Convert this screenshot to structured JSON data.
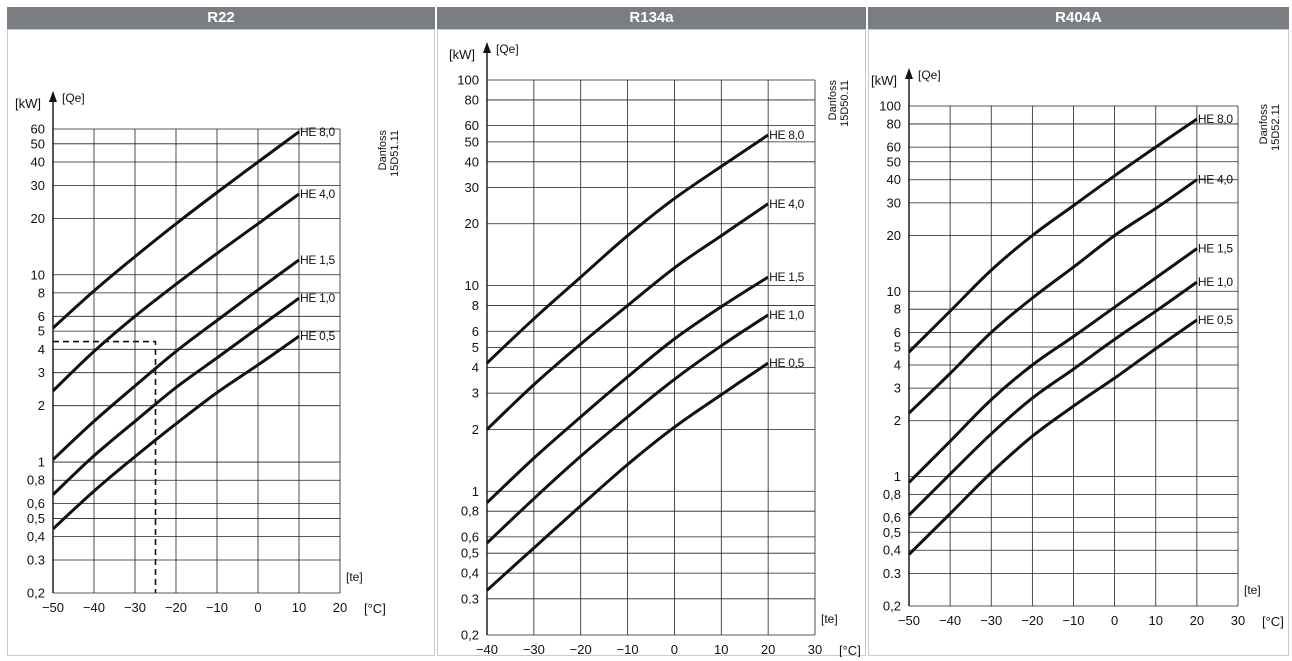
{
  "panels": [
    {
      "header": "R22"
    },
    {
      "header": "R134a"
    },
    {
      "header": "R404A"
    }
  ],
  "chart_data": [
    {
      "type": "line",
      "refrigerant": "R22",
      "y_unit": "[kW]",
      "y_quantity": "[Qe]",
      "x_quantity": "[te]",
      "x_unit": "[°C]",
      "code": "Danfoss\n15D51.11",
      "y_scale": "log",
      "ylim": [
        0.2,
        60
      ],
      "xlim": [
        -50,
        20
      ],
      "grid": true,
      "x_ticks": [
        -50,
        -40,
        -30,
        -20,
        -10,
        0,
        10,
        20
      ],
      "x_tick_labels": [
        "−50",
        "−40",
        "−30",
        "−20",
        "−10",
        "0",
        "10",
        "20"
      ],
      "y_ticks": [
        0.2,
        0.3,
        0.4,
        0.5,
        0.6,
        0.8,
        1,
        2,
        3,
        4,
        5,
        6,
        8,
        10,
        20,
        30,
        40,
        50,
        60
      ],
      "y_tick_labels": [
        "0,2",
        "0.3",
        "0,4",
        "0,5",
        "0,6",
        "0,8",
        "1",
        "2",
        "3",
        "4",
        "5",
        "6",
        "8",
        "10",
        "20",
        "30",
        "40",
        "50",
        "60"
      ],
      "series": [
        {
          "name": "HE 8,0",
          "x": [
            -50,
            -40,
            -30,
            -20,
            -10,
            0,
            10
          ],
          "y": [
            5.2,
            8.2,
            12.5,
            18.7,
            27.5,
            40,
            58
          ]
        },
        {
          "name": "HE 4,0",
          "x": [
            -50,
            -40,
            -30,
            -20,
            -10,
            0,
            10
          ],
          "y": [
            2.4,
            3.9,
            6,
            8.9,
            13,
            18.7,
            27
          ]
        },
        {
          "name": "HE 1,5",
          "x": [
            -50,
            -40,
            -30,
            -20,
            -10,
            0,
            10
          ],
          "y": [
            1.03,
            1.65,
            2.55,
            3.9,
            5.7,
            8.3,
            12
          ]
        },
        {
          "name": "HE 1,0",
          "x": [
            -50,
            -40,
            -30,
            -20,
            -10,
            0,
            10
          ],
          "y": [
            0.67,
            1.08,
            1.65,
            2.5,
            3.6,
            5.2,
            7.5
          ]
        },
        {
          "name": "HE 0,5",
          "x": [
            -50,
            -40,
            -30,
            -20,
            -10,
            0,
            10
          ],
          "y": [
            0.44,
            0.7,
            1.07,
            1.6,
            2.35,
            3.3,
            4.7
          ]
        }
      ],
      "reference_line": {
        "x": -25,
        "y": 4.4
      }
    },
    {
      "type": "line",
      "refrigerant": "R134a",
      "y_unit": "[kW]",
      "y_quantity": "[Qe]",
      "x_quantity": "[te]",
      "x_unit": "[°C]",
      "code": "Danfoss\n15D50.11",
      "y_scale": "log",
      "ylim": [
        0.2,
        100
      ],
      "xlim": [
        -40,
        30
      ],
      "grid": true,
      "x_ticks": [
        -40,
        -30,
        -20,
        -10,
        0,
        10,
        20,
        30
      ],
      "x_tick_labels": [
        "−40",
        "−30",
        "−20",
        "−10",
        "0",
        "10",
        "20",
        "30"
      ],
      "y_ticks": [
        0.2,
        0.3,
        0.4,
        0.5,
        0.6,
        0.8,
        1,
        2,
        3,
        4,
        5,
        6,
        8,
        10,
        20,
        30,
        40,
        50,
        60,
        80,
        100
      ],
      "y_tick_labels": [
        "0,2",
        "0.3",
        "0,4",
        "0,5",
        "0,6",
        "0,8",
        "1",
        "2",
        "3",
        "4",
        "5",
        "6",
        "8",
        "10",
        "20",
        "30",
        "40",
        "50",
        "60",
        "80",
        "100"
      ],
      "series": [
        {
          "name": "HE 8,0",
          "x": [
            -40,
            -30,
            -20,
            -10,
            0,
            10,
            20
          ],
          "y": [
            4.2,
            6.9,
            11,
            17.5,
            26.5,
            38,
            54
          ]
        },
        {
          "name": "HE 4,0",
          "x": [
            -40,
            -30,
            -20,
            -10,
            0,
            10,
            20
          ],
          "y": [
            2,
            3.3,
            5.2,
            8,
            12.2,
            17.5,
            25
          ]
        },
        {
          "name": "HE 1,5",
          "x": [
            -40,
            -30,
            -20,
            -10,
            0,
            10,
            20
          ],
          "y": [
            0.88,
            1.45,
            2.3,
            3.6,
            5.5,
            7.9,
            11
          ]
        },
        {
          "name": "HE 1,0",
          "x": [
            -40,
            -30,
            -20,
            -10,
            0,
            10,
            20
          ],
          "y": [
            0.56,
            0.92,
            1.48,
            2.3,
            3.5,
            5.1,
            7.2
          ]
        },
        {
          "name": "HE 0,5",
          "x": [
            -40,
            -30,
            -20,
            -10,
            0,
            10,
            20
          ],
          "y": [
            0.33,
            0.53,
            0.85,
            1.35,
            2.05,
            2.95,
            4.2
          ]
        }
      ]
    },
    {
      "type": "line",
      "refrigerant": "R404A",
      "y_unit": "[kW]",
      "y_quantity": "[Qe]",
      "x_quantity": "[te]",
      "x_unit": "[°C]",
      "code": "Danfoss\n15D52.11",
      "y_scale": "log",
      "ylim": [
        0.2,
        100
      ],
      "xlim": [
        -50,
        30
      ],
      "grid": true,
      "x_ticks": [
        -50,
        -40,
        -30,
        -20,
        -10,
        0,
        10,
        20,
        30
      ],
      "x_tick_labels": [
        "−50",
        "−40",
        "−30",
        "−20",
        "−10",
        "0",
        "10",
        "20",
        "30"
      ],
      "y_ticks": [
        0.2,
        0.3,
        0.4,
        0.5,
        0.6,
        0.8,
        1,
        2,
        3,
        4,
        5,
        6,
        8,
        10,
        20,
        30,
        40,
        50,
        60,
        80,
        100
      ],
      "y_tick_labels": [
        "0,2",
        "0.3",
        "0,4",
        "0,5",
        "0,6",
        "0,8",
        "1",
        "2",
        "3",
        "4",
        "5",
        "6",
        "8",
        "10",
        "20",
        "30",
        "40",
        "50",
        "60",
        "80",
        "100"
      ],
      "series": [
        {
          "name": "HE 8,0",
          "x": [
            -50,
            -40,
            -30,
            -20,
            -10,
            0,
            10,
            20
          ],
          "y": [
            4.7,
            7.8,
            13,
            20,
            29,
            42,
            60,
            85
          ]
        },
        {
          "name": "HE 4,0",
          "x": [
            -50,
            -40,
            -30,
            -20,
            -10,
            0,
            10,
            20
          ],
          "y": [
            2.2,
            3.6,
            6,
            9.2,
            13.5,
            20,
            28,
            40
          ]
        },
        {
          "name": "HE 1,5",
          "x": [
            -50,
            -40,
            -30,
            -20,
            -10,
            0,
            10,
            20
          ],
          "y": [
            0.93,
            1.55,
            2.6,
            4,
            5.7,
            8.2,
            11.8,
            17
          ]
        },
        {
          "name": "HE 1,0",
          "x": [
            -50,
            -40,
            -30,
            -20,
            -10,
            0,
            10,
            20
          ],
          "y": [
            0.62,
            1.03,
            1.7,
            2.65,
            3.8,
            5.5,
            7.8,
            11.2
          ]
        },
        {
          "name": "HE 0,5",
          "x": [
            -50,
            -40,
            -30,
            -20,
            -10,
            0,
            10,
            20
          ],
          "y": [
            0.38,
            0.63,
            1.05,
            1.65,
            2.4,
            3.4,
            4.9,
            7
          ]
        }
      ]
    }
  ]
}
